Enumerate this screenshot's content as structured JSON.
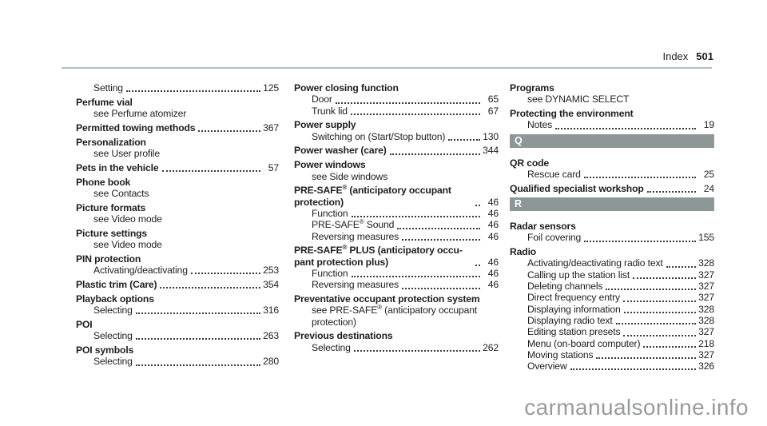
{
  "page": {
    "header": {
      "label": "Index",
      "page_number": "501"
    },
    "watermark": "carmanualsonline.info"
  },
  "colors": {
    "section_bar": "#8d9797",
    "header_rule": "#b6c0be",
    "watermark": "#999b9a",
    "text": "#1e1e1e"
  },
  "columns": [
    {
      "entries": [
        {
          "style": "sub",
          "text": "Setting",
          "page": "125"
        },
        {
          "style": "head",
          "text": "Perfume vial"
        },
        {
          "style": "see",
          "text": "see Perfume atomizer"
        },
        {
          "style": "head",
          "text": "Permitted towing methods",
          "page": "367"
        },
        {
          "style": "head",
          "text": "Personalization"
        },
        {
          "style": "see",
          "text": "see User profile"
        },
        {
          "style": "head",
          "text": "Pets in the vehicle",
          "page": "57"
        },
        {
          "style": "head",
          "text": "Phone book"
        },
        {
          "style": "see",
          "text": "see Contacts"
        },
        {
          "style": "head",
          "text": "Picture formats"
        },
        {
          "style": "see",
          "text": "see Video mode"
        },
        {
          "style": "head",
          "text": "Picture settings"
        },
        {
          "style": "see",
          "text": "see Video mode"
        },
        {
          "style": "head",
          "text": "PIN protection"
        },
        {
          "style": "sub",
          "text": "Activating/deactivating",
          "page": "253"
        },
        {
          "style": "head",
          "text": "Plastic trim (Care)",
          "page": "354"
        },
        {
          "style": "head",
          "text": "Playback options"
        },
        {
          "style": "sub",
          "text": "Selecting",
          "page": "316"
        },
        {
          "style": "head",
          "text": "POI"
        },
        {
          "style": "sub",
          "text": "Selecting",
          "page": "263"
        },
        {
          "style": "head",
          "text": "POI symbols"
        },
        {
          "style": "sub",
          "text": "Selecting",
          "page": "280"
        }
      ]
    },
    {
      "entries": [
        {
          "style": "head",
          "text": "Power closing function"
        },
        {
          "style": "sub",
          "text": "Door",
          "page": "65"
        },
        {
          "style": "sub",
          "text": "Trunk lid",
          "page": "67"
        },
        {
          "style": "head",
          "text": "Power supply"
        },
        {
          "style": "sub",
          "text": "Switching on (Start/Stop button)",
          "page": "130"
        },
        {
          "style": "head",
          "text": "Power washer (care)",
          "page": "344"
        },
        {
          "style": "head",
          "text": "Power windows"
        },
        {
          "style": "see",
          "text": "see Side windows"
        },
        {
          "style": "head",
          "text": "PRE-SAFE® (anticipatory occupant protection)",
          "page": "46"
        },
        {
          "style": "sub",
          "text": "Function",
          "page": "46"
        },
        {
          "style": "sub",
          "text": "PRE-SAFE® Sound",
          "page": "46"
        },
        {
          "style": "sub",
          "text": "Reversing measures",
          "page": "46"
        },
        {
          "style": "head",
          "text": "PRE-SAFE® PLUS (anticipatory occu­pant protection plus)",
          "page": "46"
        },
        {
          "style": "sub",
          "text": "Function",
          "page": "46"
        },
        {
          "style": "sub",
          "text": "Reversing measures",
          "page": "46"
        },
        {
          "style": "head",
          "text": "Preventative occupant protection sys­tem"
        },
        {
          "style": "see",
          "text": "see PRE-SAFE® (anticipatory occu­pant protection)"
        },
        {
          "style": "head",
          "text": "Previous destinations"
        },
        {
          "style": "sub",
          "text": "Selecting",
          "page": "262"
        }
      ]
    },
    {
      "entries": [
        {
          "style": "head",
          "text": "Programs"
        },
        {
          "style": "see",
          "text": "see DYNAMIC SELECT"
        },
        {
          "style": "head",
          "text": "Protecting the environment"
        },
        {
          "style": "sub",
          "text": "Notes",
          "page": "19"
        },
        {
          "style": "section",
          "text": "Q"
        },
        {
          "style": "head",
          "text": "QR code"
        },
        {
          "style": "sub",
          "text": "Rescue card",
          "page": "25"
        },
        {
          "style": "head",
          "text": "Qualified specialist workshop",
          "page": "24"
        },
        {
          "style": "section",
          "text": "R"
        },
        {
          "style": "head",
          "text": "Radar sensors"
        },
        {
          "style": "sub",
          "text": "Foil covering",
          "page": "155"
        },
        {
          "style": "head",
          "text": "Radio"
        },
        {
          "style": "sub",
          "text": "Activating/deactivating radio text",
          "page": "328"
        },
        {
          "style": "sub",
          "text": "Calling up the station list",
          "page": "327"
        },
        {
          "style": "sub",
          "text": "Deleting channels",
          "page": "327"
        },
        {
          "style": "sub",
          "text": "Direct frequency entry",
          "page": "327"
        },
        {
          "style": "sub",
          "text": "Displaying information",
          "page": "328"
        },
        {
          "style": "sub",
          "text": "Displaying radio text",
          "page": "328"
        },
        {
          "style": "sub",
          "text": "Editing station presets",
          "page": "327"
        },
        {
          "style": "sub",
          "text": "Menu (on-board computer)",
          "page": "218"
        },
        {
          "style": "sub",
          "text": "Moving stations",
          "page": "327"
        },
        {
          "style": "sub",
          "text": "Overview",
          "page": "326"
        }
      ]
    }
  ]
}
